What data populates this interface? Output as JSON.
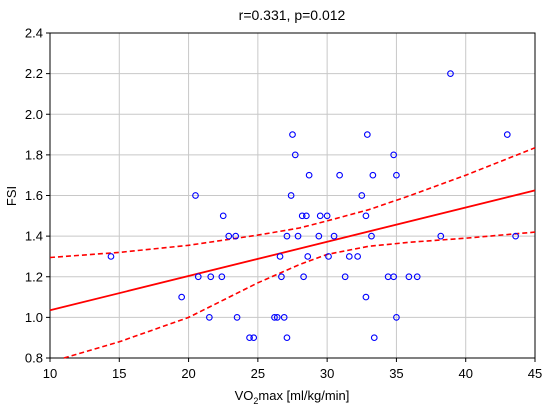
{
  "chart_data": {
    "type": "scatter",
    "title": "r=0.331, p=0.012",
    "xlabel_prefix": "VO",
    "xlabel_sub": "2",
    "xlabel_suffix": "max [ml/kg/min]",
    "ylabel": "FSI",
    "xlim": [
      10,
      45
    ],
    "ylim": [
      0.8,
      2.4
    ],
    "xticks": [
      10,
      15,
      20,
      25,
      30,
      35,
      40,
      45
    ],
    "yticks": [
      0.8,
      1.0,
      1.2,
      1.4,
      1.6,
      1.8,
      2.0,
      2.2,
      2.4
    ],
    "xtick_labels": [
      "10",
      "15",
      "20",
      "25",
      "30",
      "35",
      "40",
      "45"
    ],
    "ytick_labels": [
      "0.8",
      "1.0",
      "1.2",
      "1.4",
      "1.6",
      "1.8",
      "2.0",
      "2.2",
      "2.4"
    ],
    "grid": true,
    "points": [
      [
        14.4,
        1.3
      ],
      [
        19.5,
        1.1
      ],
      [
        20.5,
        1.6
      ],
      [
        20.7,
        1.2
      ],
      [
        21.5,
        1.0
      ],
      [
        21.6,
        1.2
      ],
      [
        22.4,
        1.2
      ],
      [
        22.5,
        1.5
      ],
      [
        22.9,
        1.4
      ],
      [
        23.4,
        1.4
      ],
      [
        23.5,
        1.0
      ],
      [
        24.4,
        0.9
      ],
      [
        24.7,
        0.9
      ],
      [
        26.2,
        1.0
      ],
      [
        26.4,
        1.0
      ],
      [
        26.6,
        1.3
      ],
      [
        26.7,
        1.2
      ],
      [
        26.9,
        1.0
      ],
      [
        27.1,
        1.4
      ],
      [
        27.1,
        0.9
      ],
      [
        27.4,
        1.6
      ],
      [
        27.5,
        1.9
      ],
      [
        27.7,
        1.8
      ],
      [
        27.9,
        1.4
      ],
      [
        28.2,
        1.5
      ],
      [
        28.3,
        1.2
      ],
      [
        28.5,
        1.5
      ],
      [
        28.6,
        1.3
      ],
      [
        28.7,
        1.7
      ],
      [
        29.4,
        1.4
      ],
      [
        29.5,
        1.5
      ],
      [
        30.0,
        1.5
      ],
      [
        30.1,
        1.3
      ],
      [
        30.5,
        1.4
      ],
      [
        30.9,
        1.7
      ],
      [
        31.3,
        1.2
      ],
      [
        31.6,
        1.3
      ],
      [
        32.2,
        1.3
      ],
      [
        32.5,
        1.6
      ],
      [
        32.8,
        1.5
      ],
      [
        32.8,
        1.1
      ],
      [
        32.9,
        1.9
      ],
      [
        33.2,
        1.4
      ],
      [
        33.3,
        1.7
      ],
      [
        33.4,
        0.9
      ],
      [
        34.4,
        1.2
      ],
      [
        34.8,
        1.8
      ],
      [
        34.8,
        1.2
      ],
      [
        35.0,
        1.7
      ],
      [
        35.0,
        1.0
      ],
      [
        35.9,
        1.2
      ],
      [
        36.5,
        1.2
      ],
      [
        38.2,
        1.4
      ],
      [
        38.9,
        2.2
      ],
      [
        43.0,
        1.9
      ],
      [
        43.6,
        1.4
      ]
    ],
    "fit_line": [
      [
        10,
        1.035
      ],
      [
        45,
        1.625
      ]
    ],
    "ci_upper": [
      [
        10,
        1.295
      ],
      [
        15,
        1.32
      ],
      [
        20,
        1.355
      ],
      [
        25,
        1.405
      ],
      [
        28,
        1.44
      ],
      [
        30,
        1.475
      ],
      [
        33,
        1.53
      ],
      [
        36,
        1.6
      ],
      [
        40,
        1.7
      ],
      [
        45,
        1.835
      ]
    ],
    "ci_lower": [
      [
        11,
        0.8
      ],
      [
        15,
        0.88
      ],
      [
        20,
        1.0
      ],
      [
        25,
        1.17
      ],
      [
        28,
        1.26
      ],
      [
        30,
        1.31
      ],
      [
        33,
        1.35
      ],
      [
        36,
        1.37
      ],
      [
        40,
        1.39
      ],
      [
        45,
        1.42
      ]
    ],
    "colors": {
      "points": "#0000ff",
      "fit": "#ff0000",
      "grid": "#c8c8c8",
      "axis": "#000000"
    }
  }
}
